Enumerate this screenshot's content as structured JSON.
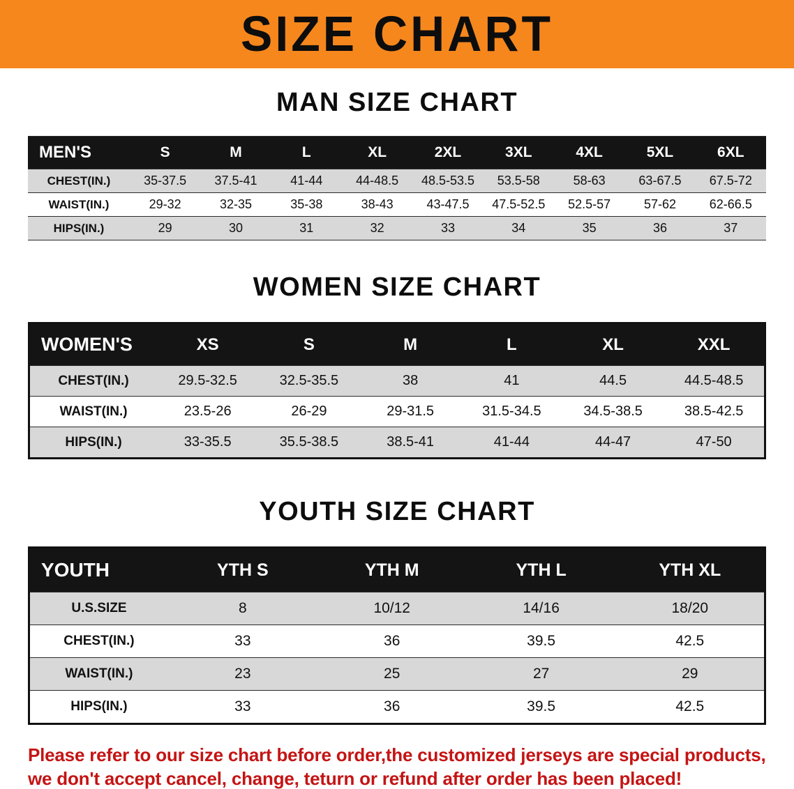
{
  "banner": {
    "title": "SIZE CHART"
  },
  "colors": {
    "banner_bg": "#f6871d",
    "header_bg": "#141414",
    "stripe": "#d8d8d8",
    "footer_text": "#c41414"
  },
  "sections": [
    {
      "id": "men",
      "heading": "MAN SIZE CHART",
      "table": {
        "header": [
          "MEN'S",
          "S",
          "M",
          "L",
          "XL",
          "2XL",
          "3XL",
          "4XL",
          "5XL",
          "6XL"
        ],
        "rows": [
          {
            "label": "CHEST(IN.)",
            "values": [
              "35-37.5",
              "37.5-41",
              "41-44",
              "44-48.5",
              "48.5-53.5",
              "53.5-58",
              "58-63",
              "63-67.5",
              "67.5-72"
            ]
          },
          {
            "label": "WAIST(IN.)",
            "values": [
              "29-32",
              "32-35",
              "35-38",
              "38-43",
              "43-47.5",
              "47.5-52.5",
              "52.5-57",
              "57-62",
              "62-66.5"
            ]
          },
          {
            "label": "HIPS(IN.)",
            "values": [
              "29",
              "30",
              "31",
              "32",
              "33",
              "34",
              "35",
              "36",
              "37"
            ]
          }
        ]
      }
    },
    {
      "id": "women",
      "heading": "WOMEN SIZE CHART",
      "table": {
        "header": [
          "WOMEN'S",
          "XS",
          "S",
          "M",
          "L",
          "XL",
          "XXL"
        ],
        "rows": [
          {
            "label": "CHEST(IN.)",
            "values": [
              "29.5-32.5",
              "32.5-35.5",
              "38",
              "41",
              "44.5",
              "44.5-48.5"
            ]
          },
          {
            "label": "WAIST(IN.)",
            "values": [
              "23.5-26",
              "26-29",
              "29-31.5",
              "31.5-34.5",
              "34.5-38.5",
              "38.5-42.5"
            ]
          },
          {
            "label": "HIPS(IN.)",
            "values": [
              "33-35.5",
              "35.5-38.5",
              "38.5-41",
              "41-44",
              "44-47",
              "47-50"
            ]
          }
        ]
      }
    },
    {
      "id": "youth",
      "heading": "YOUTH SIZE CHART",
      "table": {
        "header": [
          "YOUTH",
          "YTH S",
          "YTH M",
          "YTH L",
          "YTH XL"
        ],
        "rows": [
          {
            "label": "U.S.SIZE",
            "values": [
              "8",
              "10/12",
              "14/16",
              "18/20"
            ]
          },
          {
            "label": "CHEST(IN.)",
            "values": [
              "33",
              "36",
              "39.5",
              "42.5"
            ]
          },
          {
            "label": "WAIST(IN.)",
            "values": [
              "23",
              "25",
              "27",
              "29"
            ]
          },
          {
            "label": "HIPS(IN.)",
            "values": [
              "33",
              "36",
              "39.5",
              "42.5"
            ]
          }
        ]
      }
    }
  ],
  "footer": {
    "lines": [
      "Please refer to our size chart before order,the customized jerseys are special products,",
      "we don't accept cancel, change, teturn or refund after order has been placed!"
    ]
  }
}
